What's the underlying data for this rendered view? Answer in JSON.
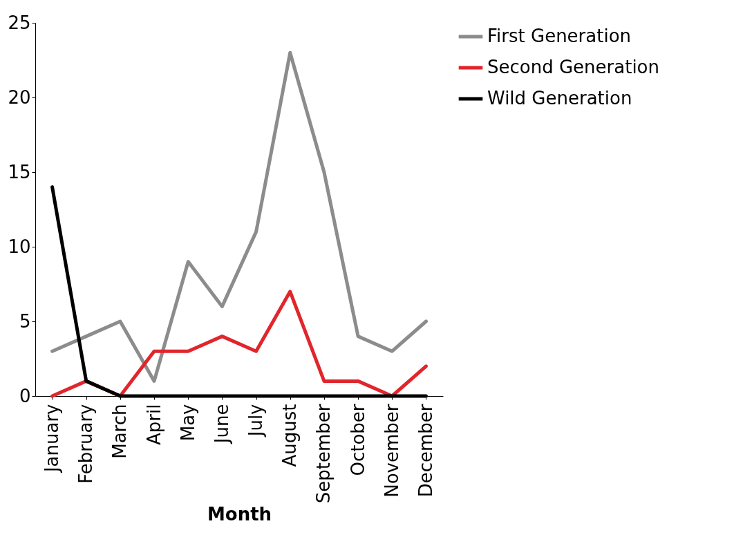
{
  "chart_data": {
    "type": "line",
    "xlabel": "Month",
    "categories": [
      "January",
      "February",
      "March",
      "April",
      "May",
      "June",
      "July",
      "August",
      "September",
      "October",
      "November",
      "December"
    ],
    "series": [
      {
        "name": "First Generation",
        "color": "#8c8c8c",
        "values": [
          3,
          4,
          5,
          1,
          9,
          6,
          11,
          23,
          15,
          4,
          3,
          5
        ]
      },
      {
        "name": "Second Generation",
        "color": "#e0262c",
        "values": [
          0,
          1,
          0,
          3,
          3,
          4,
          3,
          7,
          1,
          1,
          0,
          2
        ]
      },
      {
        "name": "Wild Generation",
        "color": "#000000",
        "values": [
          14,
          1,
          0,
          0,
          0,
          0,
          0,
          0,
          0,
          0,
          0,
          0
        ]
      }
    ],
    "ylim": [
      0,
      25
    ],
    "yticks": [
      0,
      5,
      10,
      15,
      20,
      25
    ],
    "grid": false,
    "legend": "right",
    "marker": "none",
    "line_style": "solid"
  }
}
